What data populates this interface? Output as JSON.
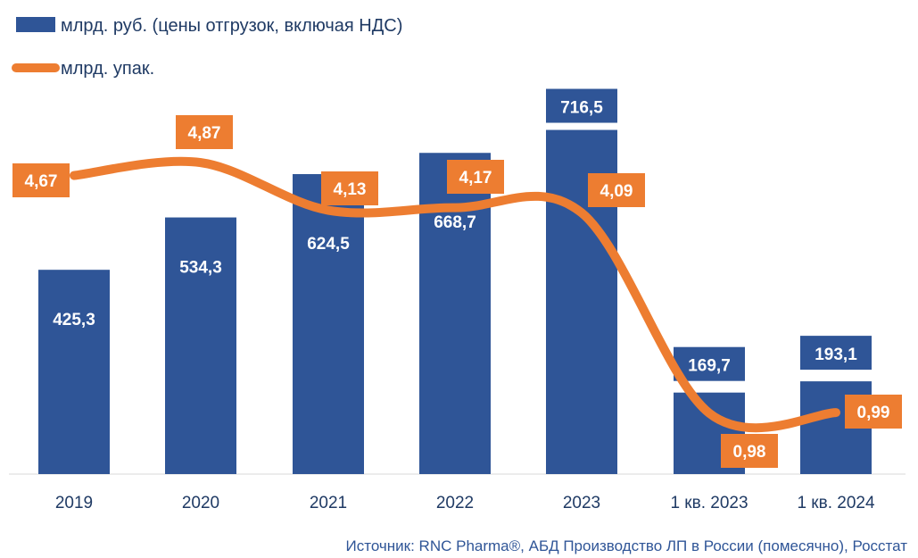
{
  "legend": {
    "bars_label": "млрд. руб. (цены отгрузок, включая НДС)",
    "line_label": "млрд. упак."
  },
  "source": "Источник: RNC Pharma®, АБД Производство ЛП в России (помесячно), Росстат",
  "colors": {
    "bars": "#2f5597",
    "line": "#ed7d31",
    "axis_text": "#1f3a64",
    "source_text": "#2f5597",
    "label_text": "#ffffff"
  },
  "chart_data": {
    "type": "bar",
    "categories": [
      "2019",
      "2020",
      "2021",
      "2022",
      "2023",
      "1 кв. 2023",
      "1 кв. 2024"
    ],
    "series": [
      {
        "name": "млрд. руб. (цены отгрузок, включая НДС)",
        "type": "bar",
        "values": [
          425.3,
          534.3,
          624.5,
          668.7,
          716.5,
          169.7,
          193.1
        ],
        "labels": [
          "425,3",
          "534,3",
          "624,5",
          "668,7",
          "716,5",
          "169,7",
          "193,1"
        ]
      },
      {
        "name": "млрд. упак.",
        "type": "line",
        "smooth": true,
        "values": [
          4.67,
          4.87,
          4.13,
          4.17,
          4.09,
          0.98,
          0.99
        ],
        "labels": [
          "4,67",
          "4,87",
          "4,13",
          "4,17",
          "4,09",
          "0,98",
          "0,99"
        ]
      }
    ],
    "legend_position": "top-left",
    "grid": false
  }
}
